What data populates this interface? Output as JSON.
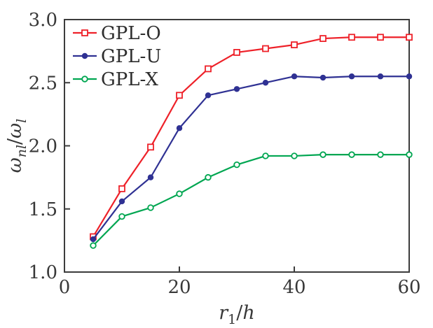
{
  "figure": {
    "background": "#ffffff",
    "axis_color": "#3c3c3c",
    "text_color": "#383838"
  },
  "chart_data": {
    "type": "line",
    "x": [
      5,
      10,
      15,
      20,
      25,
      30,
      35,
      40,
      45,
      50,
      55,
      60
    ],
    "series": [
      {
        "name": "GPL-O",
        "color": "#ee2129",
        "marker": "open-square",
        "values": [
          1.28,
          1.66,
          1.99,
          2.4,
          2.61,
          2.74,
          2.77,
          2.8,
          2.85,
          2.86,
          2.86,
          2.86
        ]
      },
      {
        "name": "GPL-U",
        "color": "#2f3193",
        "marker": "filled-circle",
        "values": [
          1.26,
          1.56,
          1.75,
          2.14,
          2.4,
          2.45,
          2.5,
          2.55,
          2.54,
          2.55,
          2.55,
          2.55
        ]
      },
      {
        "name": "GPL-X",
        "color": "#00a651",
        "marker": "open-circle",
        "values": [
          1.21,
          1.44,
          1.51,
          1.62,
          1.75,
          1.85,
          1.92,
          1.92,
          1.93,
          1.93,
          1.93,
          1.93
        ]
      }
    ],
    "xlabel": "r1/h",
    "ylabel": "omega_nl/omega_l",
    "xlim": [
      0,
      60
    ],
    "ylim": [
      1.0,
      3.0
    ],
    "xticks": [
      0,
      20,
      40,
      60
    ],
    "yticks": [
      1.0,
      1.5,
      2.0,
      2.5,
      3.0
    ],
    "xtick_labels": [
      "0",
      "20",
      "40",
      "60"
    ],
    "ytick_labels": [
      "1.0",
      "1.5",
      "2.0",
      "2.5",
      "3.0"
    ],
    "grid": false,
    "legend_position": "top-left"
  },
  "labels": {
    "xlabel_parts": [
      {
        "text": "r",
        "italic": true
      },
      {
        "text": "1",
        "sub": true,
        "italic": false
      },
      {
        "text": "/",
        "italic": false
      },
      {
        "text": "h",
        "italic": true
      }
    ],
    "ylabel_parts": [
      {
        "text": "ω",
        "italic": true
      },
      {
        "text": "nl",
        "sub": true,
        "italic": true
      },
      {
        "text": "/",
        "italic": false
      },
      {
        "text": "ω",
        "italic": true
      },
      {
        "text": "l",
        "sub": true,
        "italic": true
      }
    ]
  }
}
